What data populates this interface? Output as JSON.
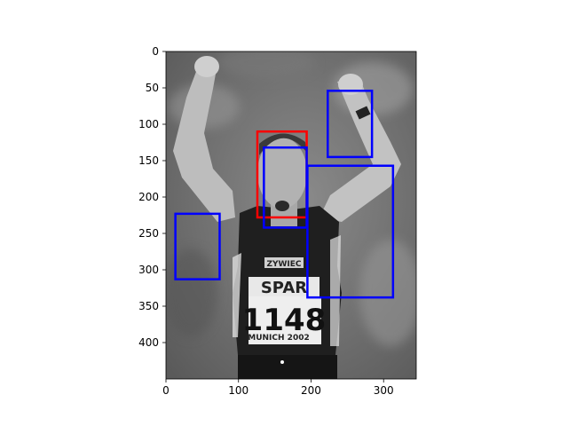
{
  "chart_data": {
    "type": "image",
    "title": "",
    "xlabel": "",
    "ylabel": "",
    "image_size": [
      345,
      450
    ],
    "xlim": [
      0,
      345
    ],
    "ylim": [
      450,
      0
    ],
    "x_ticks": [
      0,
      100,
      200,
      300
    ],
    "y_ticks": [
      0,
      50,
      100,
      150,
      200,
      250,
      300,
      350,
      400
    ],
    "image_description": "grayscale photo of a runner with both arms raised, singlet with SPAR logo and bib number 1148, MUNICH 2002",
    "image_text": {
      "bib_number": "1148",
      "sponsor": "SPAR",
      "event": "MUNICH 2002",
      "brand": "ZYWIEC"
    },
    "boxes": [
      {
        "color": "#ff0000",
        "x0": 126,
        "y0": 110,
        "x1": 194,
        "y1": 228
      },
      {
        "color": "#0000ff",
        "x0": 135,
        "y0": 132,
        "x1": 194,
        "y1": 242
      },
      {
        "color": "#0000ff",
        "x0": 223,
        "y0": 54,
        "x1": 284,
        "y1": 145
      },
      {
        "color": "#0000ff",
        "x0": 195,
        "y0": 157,
        "x1": 313,
        "y1": 338
      },
      {
        "color": "#0000ff",
        "x0": 13,
        "y0": 223,
        "x1": 74,
        "y1": 313
      }
    ]
  }
}
